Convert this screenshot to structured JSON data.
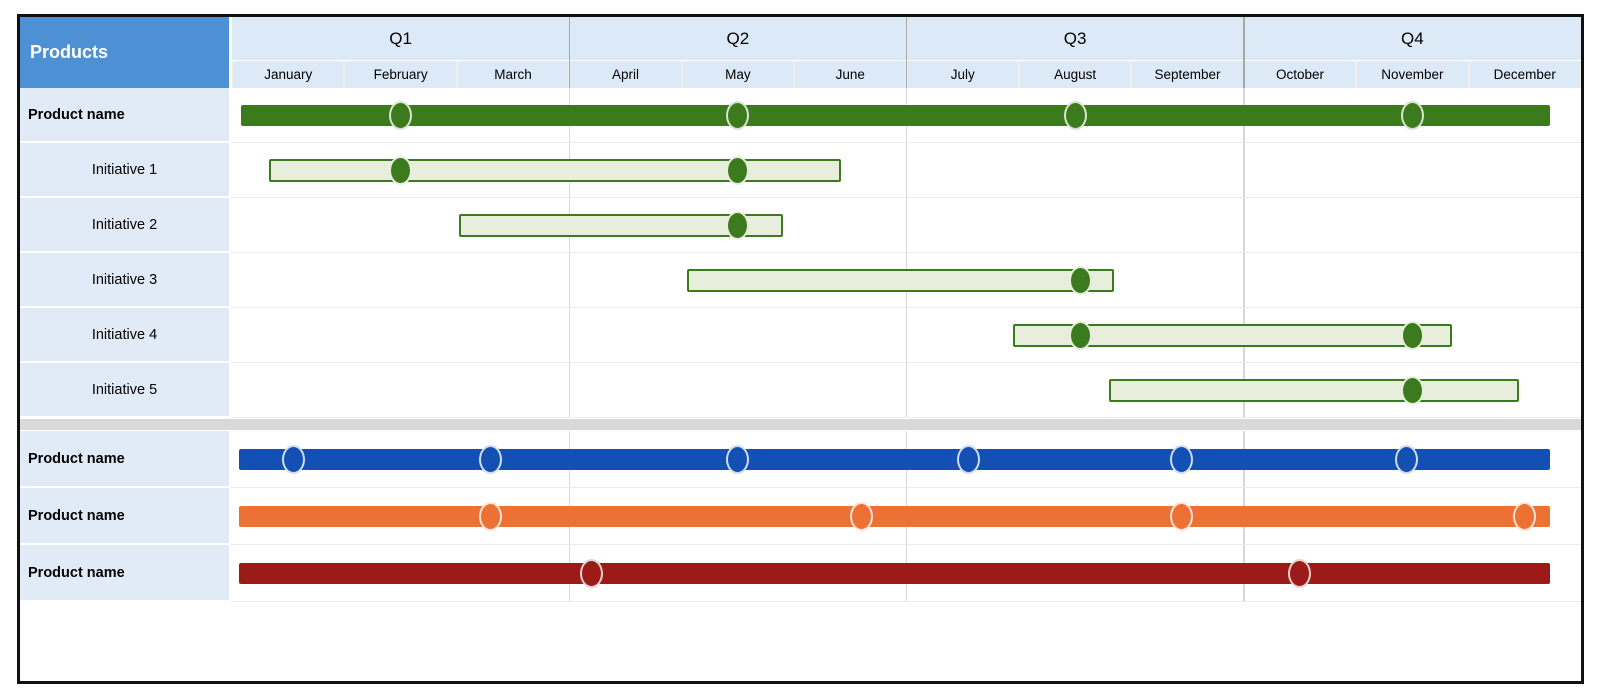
{
  "table": {
    "corner_label": "Products"
  },
  "colors": {
    "table_border": "#111111",
    "header_blue": "#4d91d4",
    "header_cell_bg": "#dce9f6",
    "row_label_bg": "#e1ebf7",
    "quarter_gridline": "#d7d7d7",
    "separator_band": "#d9d9d9",
    "green": "#3c7a1e",
    "green_light_fill": "#e7eedb",
    "blue": "#1450b4",
    "orange": "#ed7132",
    "dark_red": "#9c1a17"
  },
  "chart_data": {
    "type": "gantt",
    "title": "",
    "legend": "none",
    "grid": "quarter-boundaries-only",
    "timeline": {
      "unit": "month",
      "range": [
        0,
        12
      ],
      "quarters": [
        "Q1",
        "Q2",
        "Q3",
        "Q4"
      ],
      "months": [
        "January",
        "February",
        "March",
        "April",
        "May",
        "June",
        "July",
        "August",
        "September",
        "October",
        "November",
        "December"
      ]
    },
    "rows": [
      {
        "label": "Product name",
        "kind": "product",
        "style": "solid",
        "color": "#3c7a1e",
        "fill": "#3c7a1e",
        "bar_start": 0.08,
        "bar_end": 11.72,
        "milestones": [
          1.5,
          4.5,
          7.5,
          10.5
        ]
      },
      {
        "label": "Initiative 1",
        "kind": "initiative",
        "style": "outline",
        "color": "#3c7a1e",
        "fill": "#e7eedb",
        "bar_start": 0.33,
        "bar_end": 5.42,
        "milestones": [
          1.5,
          4.5
        ]
      },
      {
        "label": "Initiative 2",
        "kind": "initiative",
        "style": "outline",
        "color": "#3c7a1e",
        "fill": "#e7eedb",
        "bar_start": 2.02,
        "bar_end": 4.9,
        "milestones": [
          4.5
        ]
      },
      {
        "label": "Initiative 3",
        "kind": "initiative",
        "style": "outline",
        "color": "#3c7a1e",
        "fill": "#e7eedb",
        "bar_start": 4.05,
        "bar_end": 7.85,
        "milestones": [
          7.55
        ]
      },
      {
        "label": "Initiative 4",
        "kind": "initiative",
        "style": "outline",
        "color": "#3c7a1e",
        "fill": "#e7eedb",
        "bar_start": 6.95,
        "bar_end": 10.85,
        "milestones": [
          7.55,
          10.5
        ]
      },
      {
        "label": "Initiative 5",
        "kind": "initiative",
        "style": "outline",
        "color": "#3c7a1e",
        "fill": "#e7eedb",
        "bar_start": 7.8,
        "bar_end": 11.45,
        "milestones": [
          10.5
        ]
      },
      {
        "separator": true
      },
      {
        "label": "Product name",
        "kind": "product",
        "style": "solid",
        "color": "#1450b4",
        "fill": "#1450b4",
        "bar_start": 0.06,
        "bar_end": 11.72,
        "milestones": [
          0.55,
          2.3,
          4.5,
          6.55,
          8.45,
          10.45
        ]
      },
      {
        "label": "Product name",
        "kind": "product",
        "style": "solid",
        "color": "#ed7132",
        "fill": "#ed7132",
        "bar_start": 0.06,
        "bar_end": 11.72,
        "milestones": [
          2.3,
          5.6,
          8.45,
          11.5
        ]
      },
      {
        "label": "Product name",
        "kind": "product",
        "style": "solid",
        "color": "#9c1a17",
        "fill": "#9c1a17",
        "bar_start": 0.06,
        "bar_end": 11.72,
        "milestones": [
          3.2,
          9.5
        ]
      }
    ]
  }
}
